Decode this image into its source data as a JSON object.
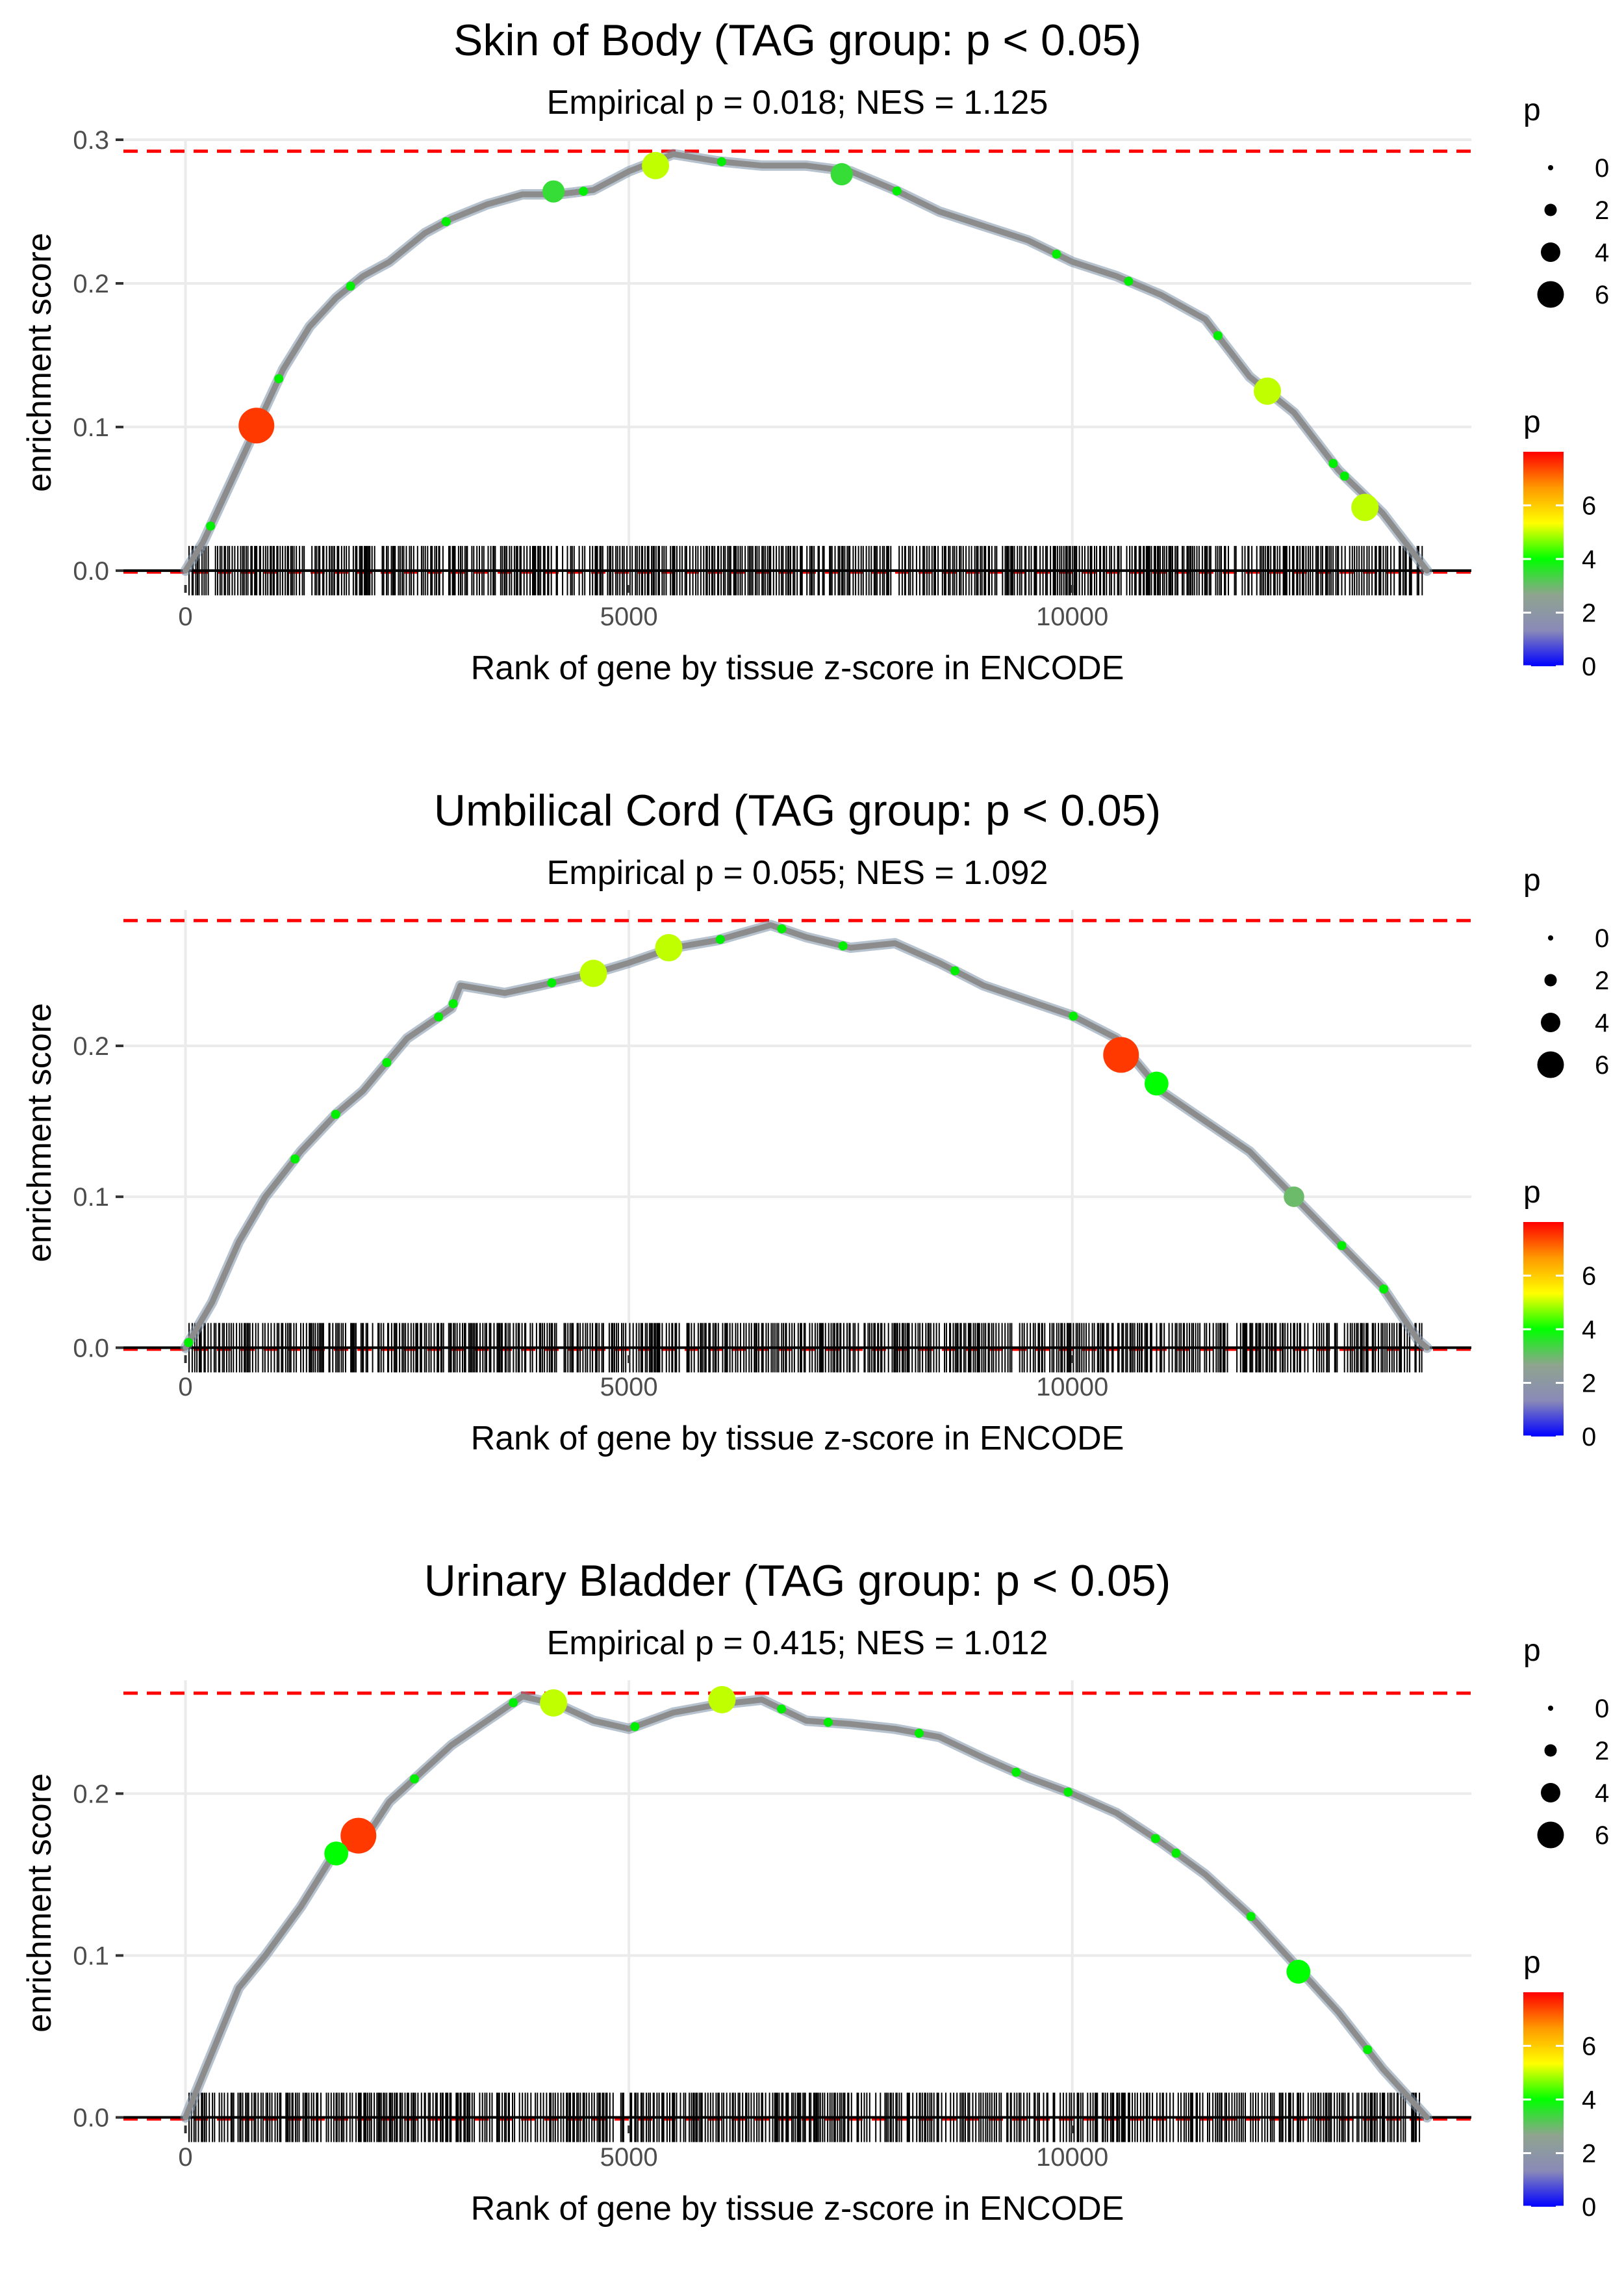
{
  "chart_data": [
    {
      "type": "line",
      "title": "Skin of Body (TAG group: p < 0.05)",
      "subtitle": "Empirical p = 0.018; NES = 1.125",
      "xlabel": "Rank of gene by tissue z-score in ENCODE",
      "ylabel": "enrichment score",
      "xlim": [
        -700,
        14500
      ],
      "ylim": [
        -0.01,
        0.3
      ],
      "x_ticks": [
        0,
        5000,
        10000
      ],
      "x_tick_labels": [
        "0",
        "5000",
        "10000"
      ],
      "y_ticks": [
        0.0,
        0.1,
        0.2,
        0.3
      ],
      "y_tick_labels": [
        "0.0",
        "0.1",
        "0.2",
        "0.3"
      ],
      "max_es": 0.292,
      "min_es": -0.001,
      "curve": [
        [
          0,
          0
        ],
        [
          200,
          0.02
        ],
        [
          500,
          0.06
        ],
        [
          800,
          0.1
        ],
        [
          1100,
          0.14
        ],
        [
          1400,
          0.17
        ],
        [
          1700,
          0.19
        ],
        [
          2000,
          0.205
        ],
        [
          2300,
          0.215
        ],
        [
          2700,
          0.235
        ],
        [
          3000,
          0.245
        ],
        [
          3400,
          0.255
        ],
        [
          3800,
          0.262
        ],
        [
          4200,
          0.262
        ],
        [
          4600,
          0.265
        ],
        [
          5000,
          0.278
        ],
        [
          5500,
          0.29
        ],
        [
          6000,
          0.285
        ],
        [
          6500,
          0.282
        ],
        [
          7000,
          0.282
        ],
        [
          7500,
          0.278
        ],
        [
          8000,
          0.265
        ],
        [
          8500,
          0.25
        ],
        [
          9000,
          0.24
        ],
        [
          9500,
          0.23
        ],
        [
          10000,
          0.215
        ],
        [
          10500,
          0.205
        ],
        [
          11000,
          0.192
        ],
        [
          11500,
          0.175
        ],
        [
          12000,
          0.135
        ],
        [
          12500,
          0.11
        ],
        [
          13000,
          0.07
        ],
        [
          13500,
          0.04
        ],
        [
          14000,
          0.0
        ]
      ],
      "points": [
        {
          "x": 800,
          "y": 0.101,
          "p": 7.5
        },
        {
          "x": 5300,
          "y": 0.282,
          "p": 5.0
        },
        {
          "x": 12200,
          "y": 0.125,
          "p": 5.0
        },
        {
          "x": 13300,
          "y": 0.044,
          "p": 5.0
        },
        {
          "x": 4150,
          "y": 0.264,
          "p": 3.5
        },
        {
          "x": 7400,
          "y": 0.276,
          "p": 3.5
        }
      ],
      "rug_seed": 11
    },
    {
      "type": "line",
      "title": "Umbilical Cord (TAG group: p < 0.05)",
      "subtitle": "Empirical p = 0.055; NES = 1.092",
      "xlabel": "Rank of gene by tissue z-score in ENCODE",
      "ylabel": "enrichment score",
      "xlim": [
        -700,
        14500
      ],
      "ylim": [
        -0.005,
        0.29
      ],
      "x_ticks": [
        0,
        5000,
        10000
      ],
      "x_tick_labels": [
        "0",
        "5000",
        "10000"
      ],
      "y_ticks": [
        0.0,
        0.1,
        0.2
      ],
      "y_tick_labels": [
        "0.0",
        "0.1",
        "0.2"
      ],
      "max_es": 0.283,
      "min_es": -0.001,
      "curve": [
        [
          0,
          0
        ],
        [
          300,
          0.03
        ],
        [
          600,
          0.07
        ],
        [
          900,
          0.1
        ],
        [
          1300,
          0.13
        ],
        [
          1700,
          0.155
        ],
        [
          2000,
          0.17
        ],
        [
          2500,
          0.205
        ],
        [
          3000,
          0.225
        ],
        [
          3100,
          0.24
        ],
        [
          3600,
          0.235
        ],
        [
          4000,
          0.24
        ],
        [
          4600,
          0.248
        ],
        [
          5000,
          0.255
        ],
        [
          5500,
          0.265
        ],
        [
          6000,
          0.27
        ],
        [
          6600,
          0.28
        ],
        [
          7000,
          0.272
        ],
        [
          7500,
          0.265
        ],
        [
          8000,
          0.268
        ],
        [
          8500,
          0.255
        ],
        [
          9000,
          0.24
        ],
        [
          9500,
          0.23
        ],
        [
          10000,
          0.22
        ],
        [
          10500,
          0.205
        ],
        [
          11000,
          0.17
        ],
        [
          11500,
          0.15
        ],
        [
          12000,
          0.13
        ],
        [
          12500,
          0.1
        ],
        [
          13000,
          0.07
        ],
        [
          13500,
          0.04
        ],
        [
          13900,
          0.005
        ],
        [
          14000,
          0.0
        ]
      ],
      "points": [
        {
          "x": 10550,
          "y": 0.194,
          "p": 7.5
        },
        {
          "x": 4600,
          "y": 0.248,
          "p": 5.0
        },
        {
          "x": 5450,
          "y": 0.265,
          "p": 5.0
        },
        {
          "x": 10950,
          "y": 0.175,
          "p": 4.0
        },
        {
          "x": 12500,
          "y": 0.1,
          "p": 3.0
        }
      ],
      "rug_seed": 23
    },
    {
      "type": "line",
      "title": "Urinary Bladder (TAG group: p < 0.05)",
      "subtitle": "Empirical p = 0.415; NES = 1.012",
      "xlabel": "Rank of gene by tissue z-score in ENCODE",
      "ylabel": "enrichment score",
      "xlim": [
        -700,
        14500
      ],
      "ylim": [
        -0.005,
        0.27
      ],
      "x_ticks": [
        0,
        5000,
        10000
      ],
      "x_tick_labels": [
        "0",
        "5000",
        "10000"
      ],
      "y_ticks": [
        0.0,
        0.1,
        0.2
      ],
      "y_tick_labels": [
        "0.0",
        "0.1",
        "0.2"
      ],
      "max_es": 0.262,
      "min_es": -0.001,
      "curve": [
        [
          0,
          0
        ],
        [
          300,
          0.04
        ],
        [
          600,
          0.08
        ],
        [
          900,
          0.1
        ],
        [
          1300,
          0.13
        ],
        [
          1700,
          0.165
        ],
        [
          2000,
          0.17
        ],
        [
          2300,
          0.195
        ],
        [
          2700,
          0.215
        ],
        [
          3000,
          0.23
        ],
        [
          3400,
          0.245
        ],
        [
          3800,
          0.26
        ],
        [
          4200,
          0.255
        ],
        [
          4600,
          0.245
        ],
        [
          5000,
          0.24
        ],
        [
          5500,
          0.25
        ],
        [
          6000,
          0.255
        ],
        [
          6500,
          0.258
        ],
        [
          7000,
          0.245
        ],
        [
          7500,
          0.243
        ],
        [
          8000,
          0.24
        ],
        [
          8500,
          0.235
        ],
        [
          9000,
          0.222
        ],
        [
          9500,
          0.21
        ],
        [
          10000,
          0.2
        ],
        [
          10500,
          0.188
        ],
        [
          11000,
          0.17
        ],
        [
          11500,
          0.15
        ],
        [
          12000,
          0.125
        ],
        [
          12500,
          0.095
        ],
        [
          13000,
          0.065
        ],
        [
          13500,
          0.03
        ],
        [
          14000,
          0.0
        ]
      ],
      "points": [
        {
          "x": 1950,
          "y": 0.174,
          "p": 7.5
        },
        {
          "x": 4150,
          "y": 0.256,
          "p": 5.0
        },
        {
          "x": 6050,
          "y": 0.258,
          "p": 5.0
        },
        {
          "x": 12550,
          "y": 0.09,
          "p": 4.0
        },
        {
          "x": 1700,
          "y": 0.163,
          "p": 4.0
        }
      ],
      "rug_seed": 37
    }
  ],
  "legend": {
    "size_title": "p",
    "size_labels": [
      "0",
      "2",
      "4",
      "6"
    ],
    "color_title": "p",
    "color_labels": [
      "6",
      "4",
      "2",
      "0"
    ],
    "color_stops": [
      "#0000ff",
      "#8a8ab8",
      "#8fa48f",
      "#00ff00",
      "#ffff00",
      "#ff9900",
      "#ff0000"
    ]
  },
  "colors": {
    "dashed_line": "#ff0000",
    "grid": "#ebebeb",
    "curve": "#8c8c8c",
    "rug": "#000000"
  }
}
